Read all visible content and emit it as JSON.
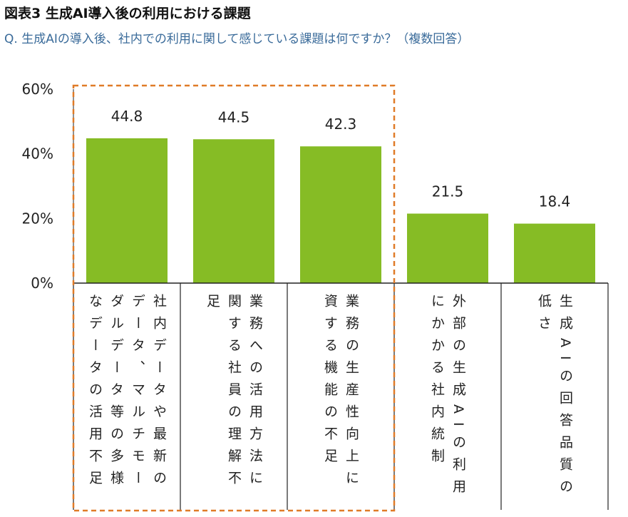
{
  "title": "図表3 生成AI導入後の利用における課題",
  "subtitle": "Q. 生成AIの導入後、社内での利用に関して感じている課題は何ですか？（複数回答）",
  "colors": {
    "bar": "#86bc25",
    "highlight": "#e07b28",
    "axis": "#222222"
  },
  "chart_data": {
    "type": "bar",
    "title": "図表3 生成AI導入後の利用における課題",
    "categories": [
      "社内データや最新のデータ、マルチモーダルデータ等の多様なデータの活用不足",
      "業務への活用方法に関する社員の理解不足",
      "業務の生産性向上に資する機能の不足",
      "外部の生成AIの利用にかかる社内統制",
      "生成AIの回答品質の低さ"
    ],
    "values": [
      44.8,
      44.5,
      42.3,
      21.5,
      18.4
    ],
    "value_labels": [
      "44.8",
      "44.5",
      "42.3",
      "21.5",
      "18.4"
    ],
    "yticks": [
      "0%",
      "20%",
      "40%",
      "60%"
    ],
    "ylim": [
      0,
      60
    ],
    "xlabel": "",
    "ylabel": "",
    "grid": false,
    "highlighted": [
      0,
      1,
      2
    ]
  }
}
